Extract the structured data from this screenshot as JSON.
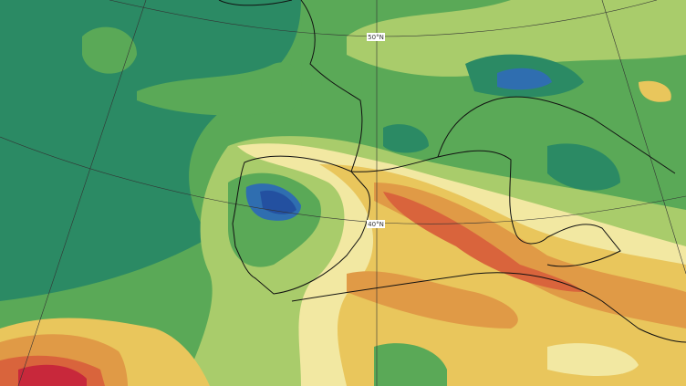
{
  "map": {
    "latitude_labels": [
      "50°N",
      "40°N"
    ]
  }
}
